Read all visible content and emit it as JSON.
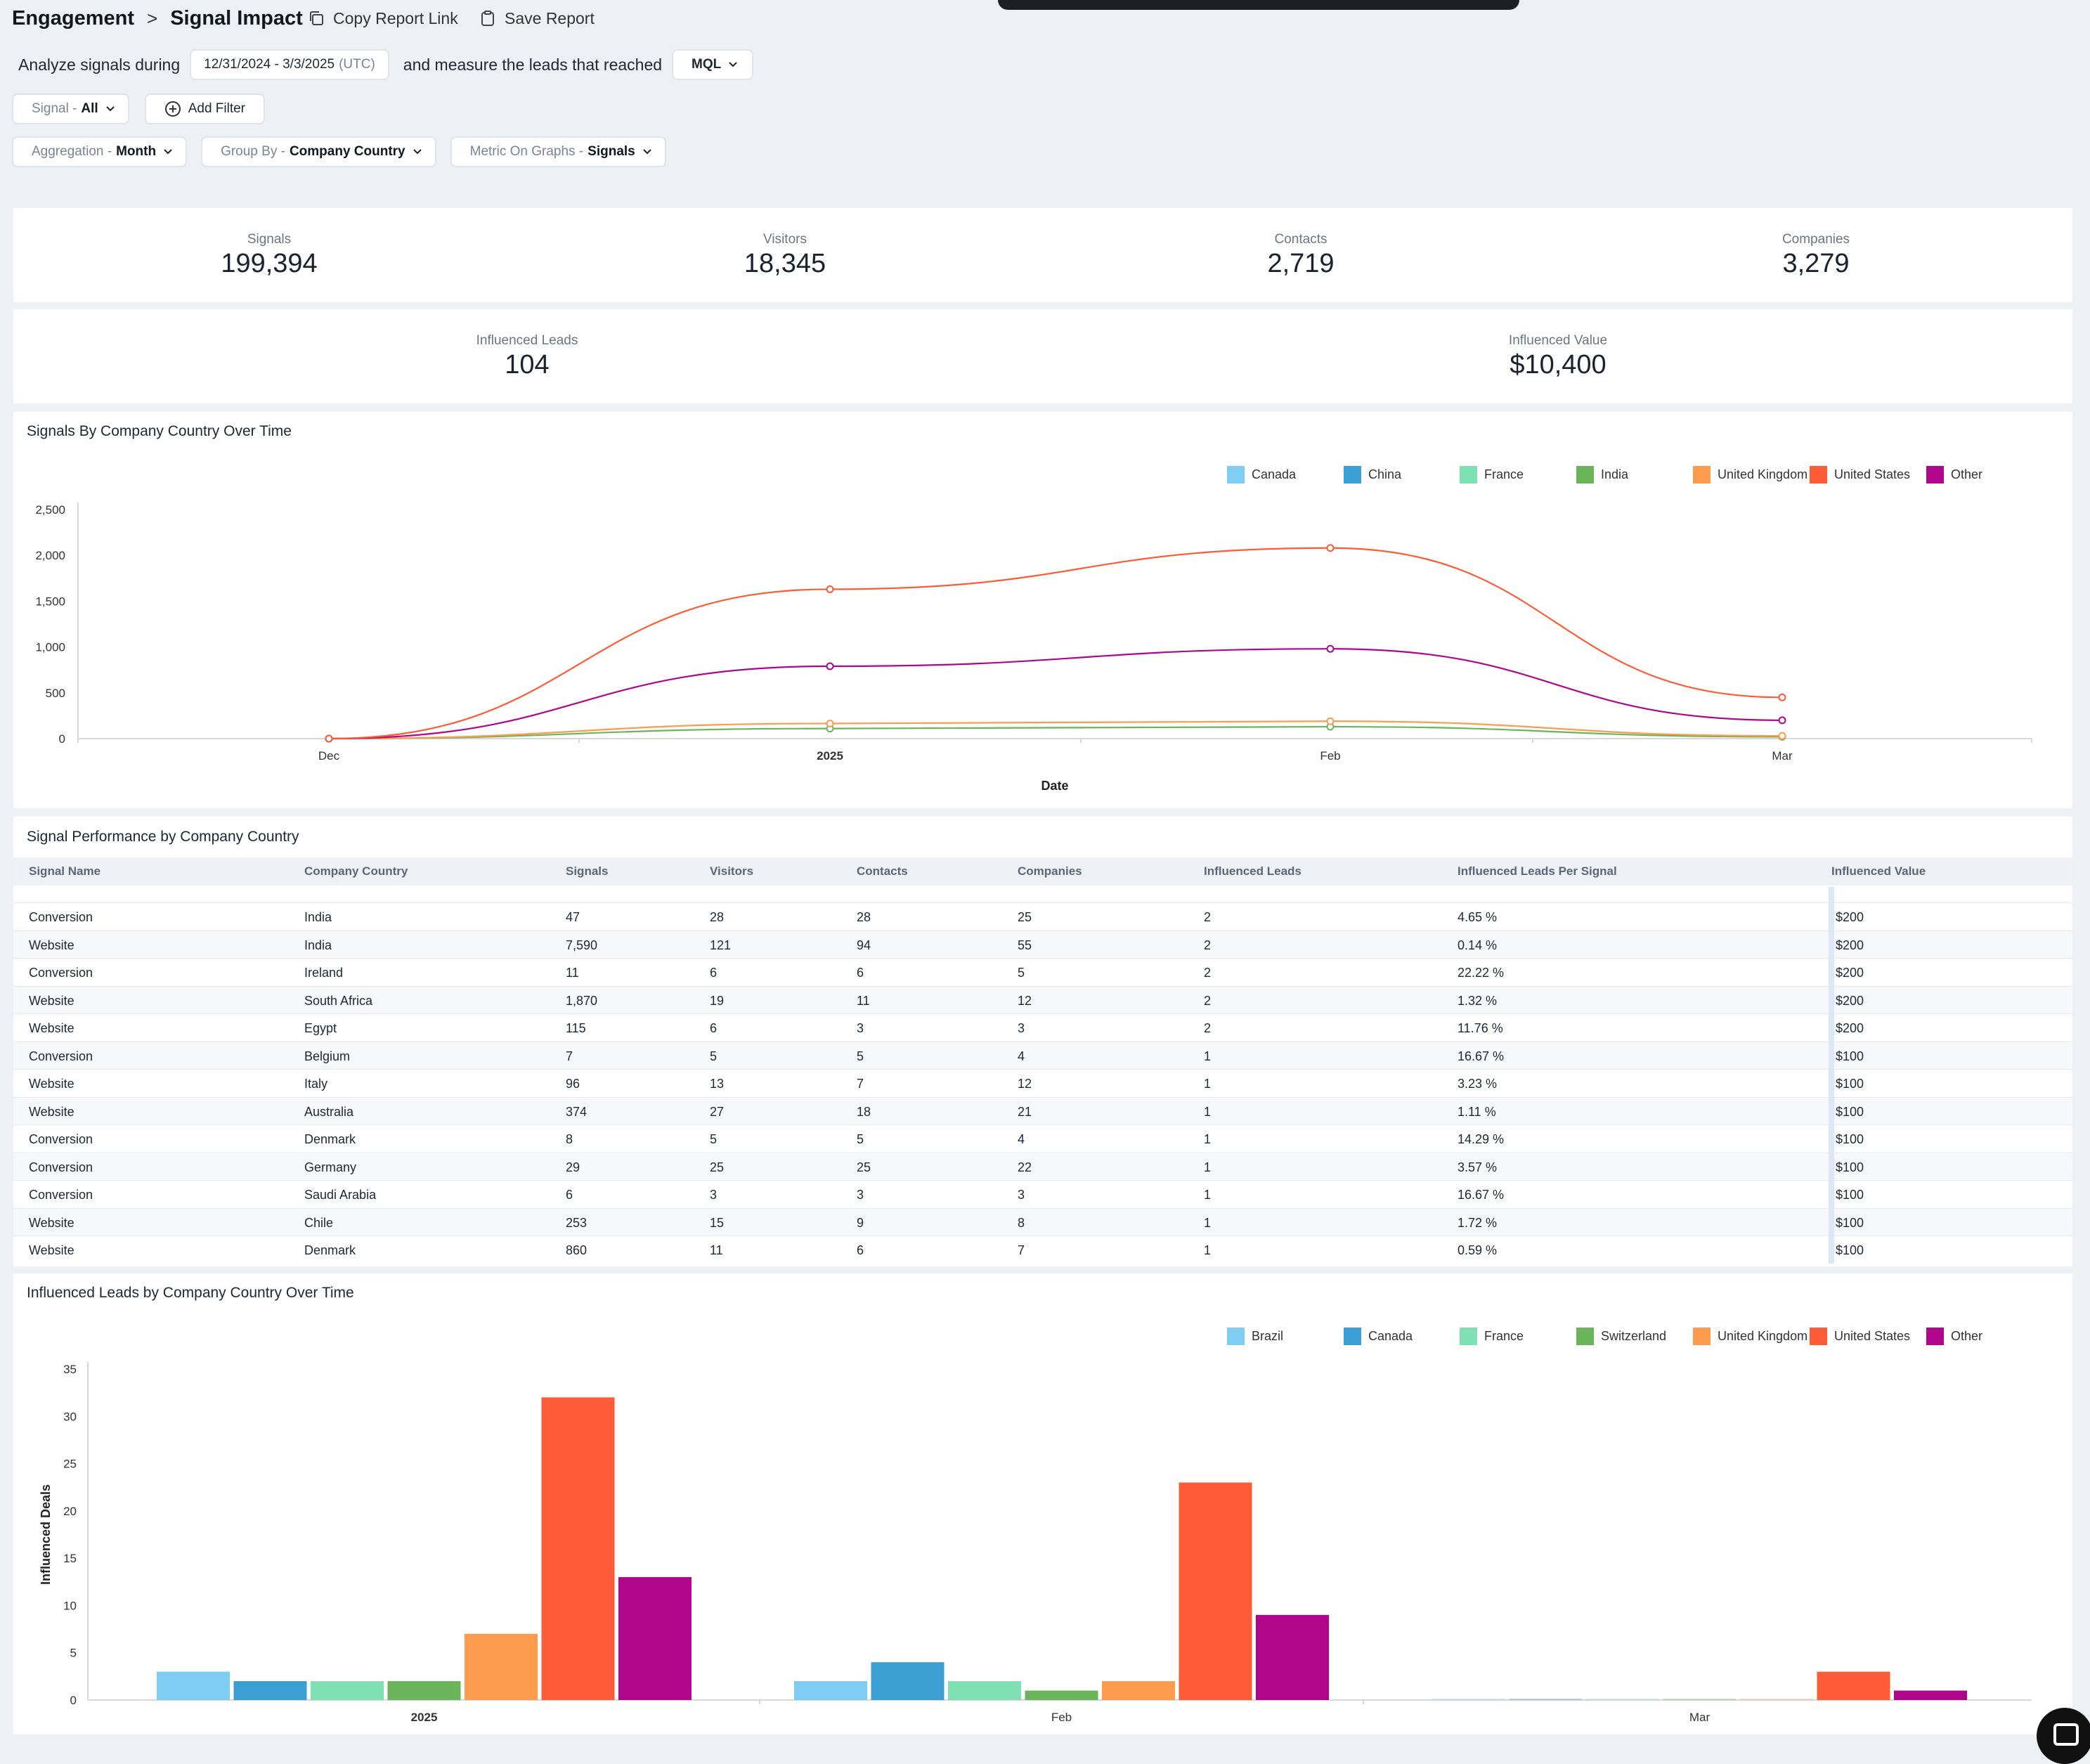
{
  "breadcrumb": {
    "parent": "Engagement",
    "separator": ">",
    "current": "Signal Impact"
  },
  "header_actions": {
    "copy_link": "Copy Report Link",
    "save_report": "Save Report"
  },
  "analyze": {
    "prefix": "Analyze signals during",
    "date_range": "12/31/2024 - 3/3/2025",
    "tz": "(UTC)",
    "middle": "and measure the leads that reached",
    "stage": "MQL"
  },
  "filters": {
    "signal": {
      "label": "Signal -",
      "value": "All"
    },
    "add_filter": "Add Filter",
    "aggregation": {
      "label": "Aggregation -",
      "value": "Month"
    },
    "group_by": {
      "label": "Group By -",
      "value": "Company Country"
    },
    "metric": {
      "label": "Metric On Graphs -",
      "value": "Signals"
    }
  },
  "stats": [
    {
      "label": "Signals",
      "value": "199,394"
    },
    {
      "label": "Visitors",
      "value": "18,345"
    },
    {
      "label": "Contacts",
      "value": "2,719"
    },
    {
      "label": "Companies",
      "value": "3,279"
    }
  ],
  "stats2": [
    {
      "label": "Influenced Leads",
      "value": "104"
    },
    {
      "label": "Influenced Value",
      "value": "$10,400"
    }
  ],
  "colors": {
    "Canada": "#7ecef4",
    "China": "#3b9fd4",
    "France": "#7fe0b4",
    "India": "#6ab55a",
    "United Kingdom": "#fd9b4f",
    "United States": "#fd5c36",
    "Other": "#b0068c",
    "Brazil": "#7ecef4",
    "Canada2": "#3b9fd4",
    "Switzerland": "#6ab55a"
  },
  "chart_data": [
    {
      "type": "line",
      "title": "Signals By Company Country Over Time",
      "xlabel": "Date",
      "ylabel": "",
      "x": [
        "Dec",
        "2025",
        "Feb",
        "Mar"
      ],
      "ylim": [
        0,
        2500
      ],
      "yticks": [
        "0",
        "500",
        "1,000",
        "1,500",
        "2,000",
        "2,500"
      ],
      "legend": [
        "Canada",
        "China",
        "France",
        "India",
        "United Kingdom",
        "United States",
        "Other"
      ],
      "series": [
        {
          "name": "United States",
          "color": "#fd5c36",
          "values": [
            0,
            1630,
            2080,
            450
          ]
        },
        {
          "name": "Other",
          "color": "#b0068c",
          "values": [
            0,
            790,
            980,
            200
          ]
        },
        {
          "name": "United Kingdom",
          "color": "#fd9b4f",
          "values": [
            0,
            165,
            190,
            30
          ]
        },
        {
          "name": "India",
          "color": "#6ab55a",
          "values": [
            0,
            110,
            130,
            20
          ]
        }
      ]
    },
    {
      "type": "bar",
      "title": "Influenced Leads by Company Country Over Time",
      "xlabel": "",
      "ylabel": "Influenced Deals",
      "categories": [
        "2025",
        "Feb",
        "Mar"
      ],
      "ylim": [
        0,
        35
      ],
      "yticks": [
        "0",
        "5",
        "10",
        "15",
        "20",
        "25",
        "30",
        "35"
      ],
      "legend": [
        "Brazil",
        "Canada",
        "France",
        "Switzerland",
        "United Kingdom",
        "United States",
        "Other"
      ],
      "series": [
        {
          "name": "Brazil",
          "color": "#7ecef4",
          "values": [
            3,
            2,
            0
          ]
        },
        {
          "name": "Canada",
          "color": "#3b9fd4",
          "values": [
            2,
            4,
            0
          ]
        },
        {
          "name": "France",
          "color": "#7fe0b4",
          "values": [
            2,
            2,
            0
          ]
        },
        {
          "name": "Switzerland",
          "color": "#6ab55a",
          "values": [
            2,
            1,
            0
          ]
        },
        {
          "name": "United Kingdom",
          "color": "#fd9b4f",
          "values": [
            7,
            2,
            0
          ]
        },
        {
          "name": "United States",
          "color": "#fd5c36",
          "values": [
            32,
            23,
            3
          ]
        },
        {
          "name": "Other",
          "color": "#b0068c",
          "values": [
            13,
            9,
            1
          ]
        }
      ]
    }
  ],
  "table": {
    "title": "Signal Performance by Company Country",
    "columns": [
      "Signal Name",
      "Company Country",
      "Signals",
      "Visitors",
      "Contacts",
      "Companies",
      "Influenced Leads",
      "Influenced Leads Per Signal",
      "Influenced Value"
    ],
    "rows": [
      [
        "Conversion",
        "India",
        "47",
        "28",
        "28",
        "25",
        "2",
        "4.65 %",
        "$200"
      ],
      [
        "Website",
        "India",
        "7,590",
        "121",
        "94",
        "55",
        "2",
        "0.14 %",
        "$200"
      ],
      [
        "Conversion",
        "Ireland",
        "11",
        "6",
        "6",
        "5",
        "2",
        "22.22 %",
        "$200"
      ],
      [
        "Website",
        "South Africa",
        "1,870",
        "19",
        "11",
        "12",
        "2",
        "1.32 %",
        "$200"
      ],
      [
        "Website",
        "Egypt",
        "115",
        "6",
        "3",
        "3",
        "2",
        "11.76 %",
        "$200"
      ],
      [
        "Conversion",
        "Belgium",
        "7",
        "5",
        "5",
        "4",
        "1",
        "16.67 %",
        "$100"
      ],
      [
        "Website",
        "Italy",
        "96",
        "13",
        "7",
        "12",
        "1",
        "3.23 %",
        "$100"
      ],
      [
        "Website",
        "Australia",
        "374",
        "27",
        "18",
        "21",
        "1",
        "1.11 %",
        "$100"
      ],
      [
        "Conversion",
        "Denmark",
        "8",
        "5",
        "5",
        "4",
        "1",
        "14.29 %",
        "$100"
      ],
      [
        "Conversion",
        "Germany",
        "29",
        "25",
        "25",
        "22",
        "1",
        "3.57 %",
        "$100"
      ],
      [
        "Conversion",
        "Saudi Arabia",
        "6",
        "3",
        "3",
        "3",
        "1",
        "16.67 %",
        "$100"
      ],
      [
        "Website",
        "Chile",
        "253",
        "15",
        "9",
        "8",
        "1",
        "1.72 %",
        "$100"
      ],
      [
        "Website",
        "Denmark",
        "860",
        "11",
        "6",
        "7",
        "1",
        "0.59 %",
        "$100"
      ]
    ]
  }
}
